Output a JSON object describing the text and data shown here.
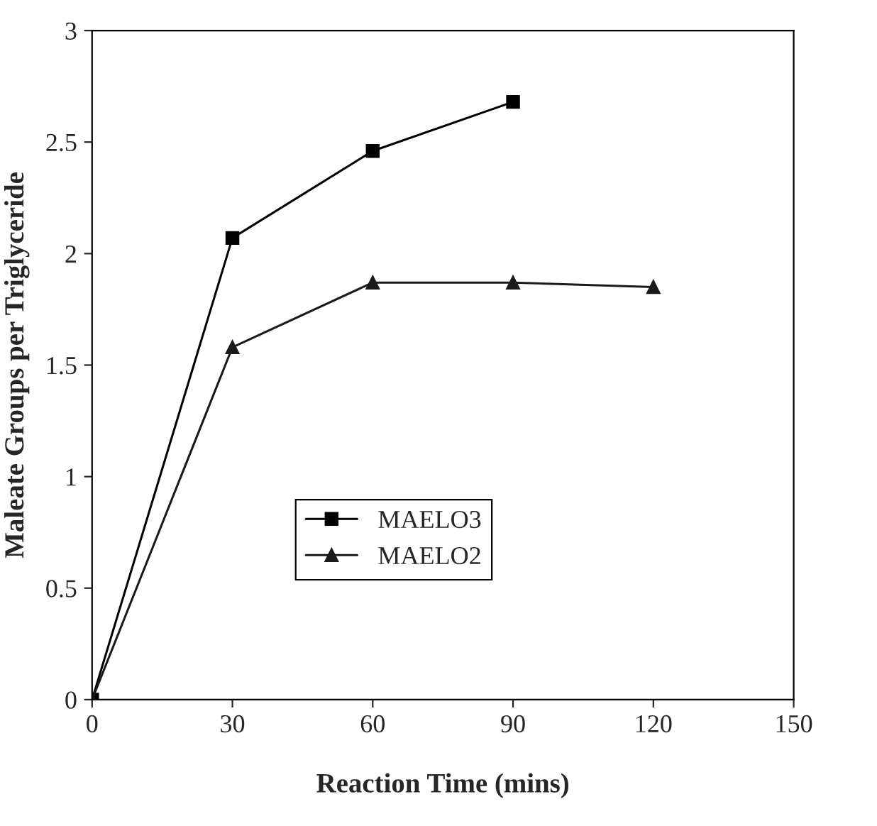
{
  "chart_data": {
    "type": "line",
    "xlabel": "Reaction Time (mins)",
    "ylabel": "Maleate Groups per Triglyceride",
    "xlim": [
      0,
      150
    ],
    "xticks": [
      0,
      30,
      60,
      90,
      120,
      150
    ],
    "ylim": [
      0,
      3
    ],
    "yticks": [
      0,
      0.5,
      1,
      1.5,
      2,
      2.5,
      3
    ],
    "grid": false,
    "legend": "bottom",
    "line_style": "solid",
    "series": [
      {
        "name": "MAELO3",
        "color": "#000000",
        "marker": "square",
        "x": [
          0,
          30,
          60,
          90
        ],
        "values": [
          0,
          2.07,
          2.46,
          2.68
        ]
      },
      {
        "name": "MAELO2",
        "color": "#1a1a1a",
        "marker": "triangle",
        "x": [
          0,
          30,
          60,
          90,
          120
        ],
        "values": [
          0,
          1.58,
          1.87,
          1.87,
          1.85
        ]
      }
    ]
  }
}
